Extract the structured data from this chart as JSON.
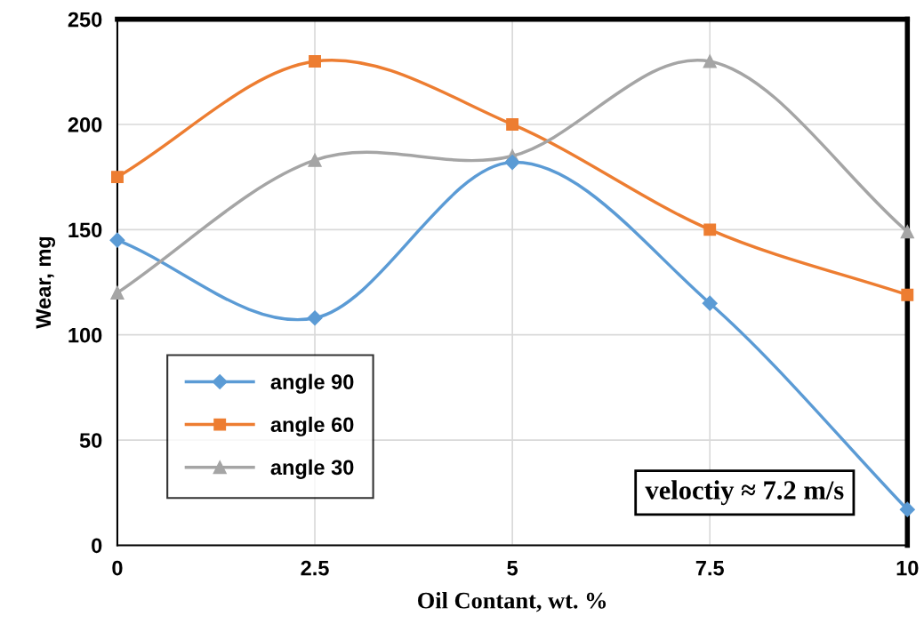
{
  "chart_data": {
    "type": "line",
    "xlabel": "Oil Contant, wt. %",
    "ylabel": "Wear, mg",
    "x": [
      0,
      2.5,
      5,
      7.5,
      10
    ],
    "series": [
      {
        "name": "angle 90",
        "color": "#5b9bd5",
        "marker": "diamond",
        "values": [
          145,
          108,
          182,
          115,
          17
        ]
      },
      {
        "name": "angle 60",
        "color": "#ed7d31",
        "marker": "square",
        "values": [
          175,
          230,
          200,
          150,
          119
        ]
      },
      {
        "name": "angle 30",
        "color": "#a5a5a5",
        "marker": "triangle",
        "values": [
          120,
          183,
          185,
          230,
          149
        ]
      }
    ],
    "xlim": [
      0,
      10
    ],
    "xticks": [
      0,
      2.5,
      5,
      7.5,
      10
    ],
    "ylim": [
      0,
      250
    ],
    "yticks": [
      0,
      50,
      100,
      150,
      200,
      250
    ],
    "grid": true,
    "legend": "bottom left",
    "line_style": "solid",
    "annotations": [
      "veloctiy ≈ 7.2 m/s"
    ]
  }
}
